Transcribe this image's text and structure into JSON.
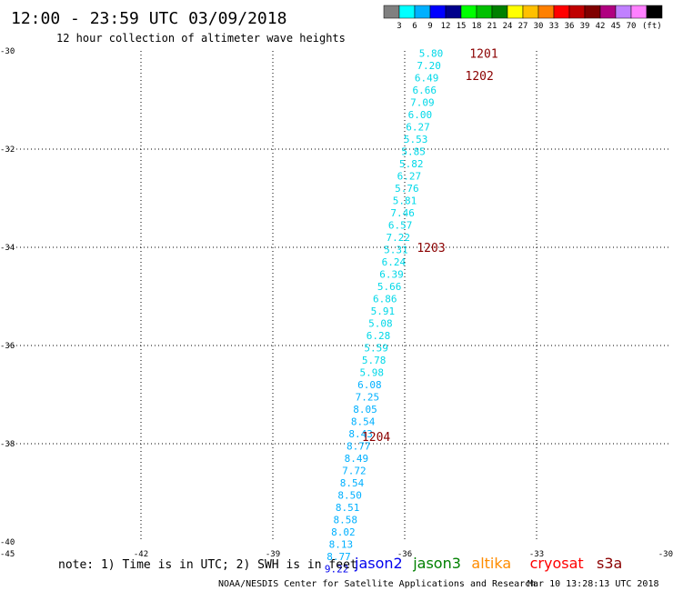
{
  "header": {
    "title": "12:00 - 23:59 UTC 03/09/2018",
    "subtitle": "12 hour collection of altimeter wave heights",
    "scale_unit": "(ft)"
  },
  "legend_scale": {
    "swatches": [
      "#808080",
      "#00ffff",
      "#00b0ff",
      "#0000ff",
      "#00008b",
      "#00ff00",
      "#00c000",
      "#008000",
      "#ffff00",
      "#ffc000",
      "#ff8000",
      "#ff0000",
      "#c00000",
      "#800000",
      "#b00080",
      "#c080ff",
      "#ff80ff",
      "#000000"
    ],
    "labels": [
      "3",
      "6",
      "9",
      "12",
      "15",
      "18",
      "21",
      "24",
      "27",
      "30",
      "33",
      "36",
      "39",
      "42",
      "45",
      "70"
    ]
  },
  "footer": {
    "note": "note: 1) Time is in UTC; 2) SWH is in feet",
    "credit": "NOAA/NESDIS Center for Satellite Applications and Research",
    "timestamp": "Mar 10 13:28:13 UTC 2018",
    "satellites": [
      {
        "name": "jason2",
        "color": "#0000ee"
      },
      {
        "name": "jason3",
        "color": "#008000"
      },
      {
        "name": "altika",
        "color": "#ff8c00"
      },
      {
        "name": "cryosat",
        "color": "#ff0000"
      },
      {
        "name": "s3a",
        "color": "#8b0000"
      }
    ]
  },
  "chart_data": {
    "type": "scatter",
    "xlim": [
      -45,
      -30
    ],
    "ylim": [
      -40,
      -30
    ],
    "x_ticks": [
      "-45",
      "-42",
      "-39",
      "-36",
      "-33",
      "-30"
    ],
    "y_ticks": [
      "-30",
      "-32",
      "-34",
      "-36",
      "-38",
      "-40"
    ],
    "x_tick_values": [
      -45,
      -42,
      -39,
      -36,
      -33,
      -30
    ],
    "y_tick_values": [
      -30,
      -32,
      -34,
      -36,
      -38,
      -40
    ],
    "grid": true,
    "points": [
      {
        "x": -35.4,
        "y": -30.05,
        "label": "5.80",
        "color": "#00d8e8"
      },
      {
        "x": -35.45,
        "y": -30.3,
        "label": "7.20",
        "color": "#00d8e8"
      },
      {
        "x": -35.5,
        "y": -30.55,
        "label": "6.49",
        "color": "#00d8e8"
      },
      {
        "x": -35.55,
        "y": -30.8,
        "label": "6.66",
        "color": "#00d8e8"
      },
      {
        "x": -35.6,
        "y": -31.05,
        "label": "7.09",
        "color": "#00d8e8"
      },
      {
        "x": -35.65,
        "y": -31.3,
        "label": "6.00",
        "color": "#00d8e8"
      },
      {
        "x": -35.7,
        "y": -31.55,
        "label": "6.27",
        "color": "#00d8e8"
      },
      {
        "x": -35.75,
        "y": -31.8,
        "label": "5.53",
        "color": "#00d8e8"
      },
      {
        "x": -35.8,
        "y": -32.05,
        "label": "5.85",
        "color": "#00d8e8"
      },
      {
        "x": -35.85,
        "y": -32.3,
        "label": "5.82",
        "color": "#00d8e8"
      },
      {
        "x": -35.9,
        "y": -32.55,
        "label": "6.27",
        "color": "#00d8e8"
      },
      {
        "x": -35.95,
        "y": -32.8,
        "label": "5.76",
        "color": "#00d8e8"
      },
      {
        "x": -36.0,
        "y": -33.05,
        "label": "5.81",
        "color": "#00d8e8"
      },
      {
        "x": -36.05,
        "y": -33.3,
        "label": "7.46",
        "color": "#00d8e8"
      },
      {
        "x": -36.1,
        "y": -33.55,
        "label": "6.57",
        "color": "#00d8e8"
      },
      {
        "x": -36.15,
        "y": -33.8,
        "label": "7.22",
        "color": "#00d8e8"
      },
      {
        "x": -36.2,
        "y": -34.05,
        "label": "5.31",
        "color": "#00d8e8"
      },
      {
        "x": -36.25,
        "y": -34.3,
        "label": "6.24",
        "color": "#00d8e8"
      },
      {
        "x": -36.3,
        "y": -34.55,
        "label": "6.39",
        "color": "#00d8e8"
      },
      {
        "x": -36.35,
        "y": -34.8,
        "label": "5.66",
        "color": "#00d8e8"
      },
      {
        "x": -36.45,
        "y": -35.05,
        "label": "6.86",
        "color": "#00d8e8"
      },
      {
        "x": -36.5,
        "y": -35.3,
        "label": "5.91",
        "color": "#00d8e8"
      },
      {
        "x": -36.55,
        "y": -35.55,
        "label": "5.08",
        "color": "#00d8e8"
      },
      {
        "x": -36.6,
        "y": -35.8,
        "label": "6.28",
        "color": "#00d8e8"
      },
      {
        "x": -36.65,
        "y": -36.05,
        "label": "5.59",
        "color": "#00d8e8"
      },
      {
        "x": -36.7,
        "y": -36.3,
        "label": "5.78",
        "color": "#00d8e8"
      },
      {
        "x": -36.75,
        "y": -36.55,
        "label": "5.98",
        "color": "#00d8e8"
      },
      {
        "x": -36.8,
        "y": -36.8,
        "label": "6.08",
        "color": "#00b0ff"
      },
      {
        "x": -36.85,
        "y": -37.05,
        "label": "7.25",
        "color": "#00b0ff"
      },
      {
        "x": -36.9,
        "y": -37.3,
        "label": "8.05",
        "color": "#00b0ff"
      },
      {
        "x": -36.95,
        "y": -37.55,
        "label": "8.54",
        "color": "#00b0ff"
      },
      {
        "x": -37.0,
        "y": -37.8,
        "label": "8.43",
        "color": "#00b0ff"
      },
      {
        "x": -37.05,
        "y": -38.05,
        "label": "8.77",
        "color": "#00b0ff"
      },
      {
        "x": -37.1,
        "y": -38.3,
        "label": "8.49",
        "color": "#00b0ff"
      },
      {
        "x": -37.15,
        "y": -38.55,
        "label": "7.72",
        "color": "#00b0ff"
      },
      {
        "x": -37.2,
        "y": -38.8,
        "label": "8.54",
        "color": "#00b0ff"
      },
      {
        "x": -37.25,
        "y": -39.05,
        "label": "8.50",
        "color": "#00b0ff"
      },
      {
        "x": -37.3,
        "y": -39.3,
        "label": "8.51",
        "color": "#00b0ff"
      },
      {
        "x": -37.35,
        "y": -39.55,
        "label": "8.58",
        "color": "#00b0ff"
      },
      {
        "x": -37.4,
        "y": -39.8,
        "label": "8.02",
        "color": "#00b0ff"
      },
      {
        "x": -37.45,
        "y": -40.05,
        "label": "8.13",
        "color": "#00b0ff"
      },
      {
        "x": -37.5,
        "y": -40.3,
        "label": "8.77",
        "color": "#00b0ff"
      },
      {
        "x": -37.55,
        "y": -40.55,
        "label": "9.22",
        "color": "#0000ee"
      }
    ],
    "time_labels": [
      {
        "x": -34.2,
        "y": -30.05,
        "label": "1201",
        "color": "#8b0000"
      },
      {
        "x": -34.3,
        "y": -30.5,
        "label": "1202",
        "color": "#8b0000"
      },
      {
        "x": -35.4,
        "y": -34.0,
        "label": "1203",
        "color": "#8b0000"
      },
      {
        "x": -36.65,
        "y": -37.85,
        "label": "1204",
        "color": "#8b0000"
      }
    ]
  }
}
